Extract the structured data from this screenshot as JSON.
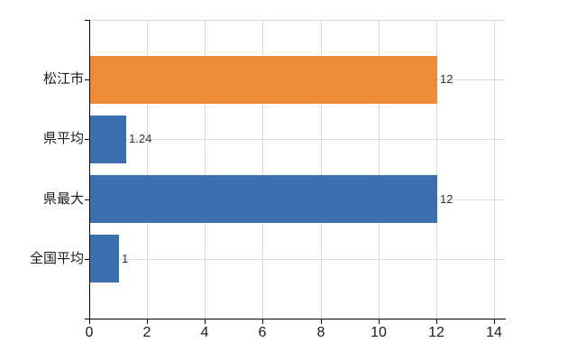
{
  "chart_data": {
    "type": "bar",
    "orientation": "horizontal",
    "categories": [
      "松江市",
      "県平均",
      "県最大",
      "全国平均"
    ],
    "values": [
      12,
      1.24,
      12,
      1
    ],
    "value_labels": [
      "12",
      "1.24",
      "12",
      "1"
    ],
    "bar_colors": [
      "#EC8B38",
      "#3A70AD",
      "#3A70AD",
      "#3A70AD"
    ],
    "xlim": [
      0,
      14.375
    ],
    "x_ticks": [
      0,
      2,
      4,
      6,
      8,
      10,
      12,
      14
    ],
    "grid": true,
    "legend": false,
    "colors": {
      "gridline": "#D9D9D9",
      "axis": "#000000",
      "category_text": "#1A1A1A",
      "tick_text": "#1A1A1A",
      "value_text": "#333333",
      "background": "#FFFFFF"
    }
  }
}
